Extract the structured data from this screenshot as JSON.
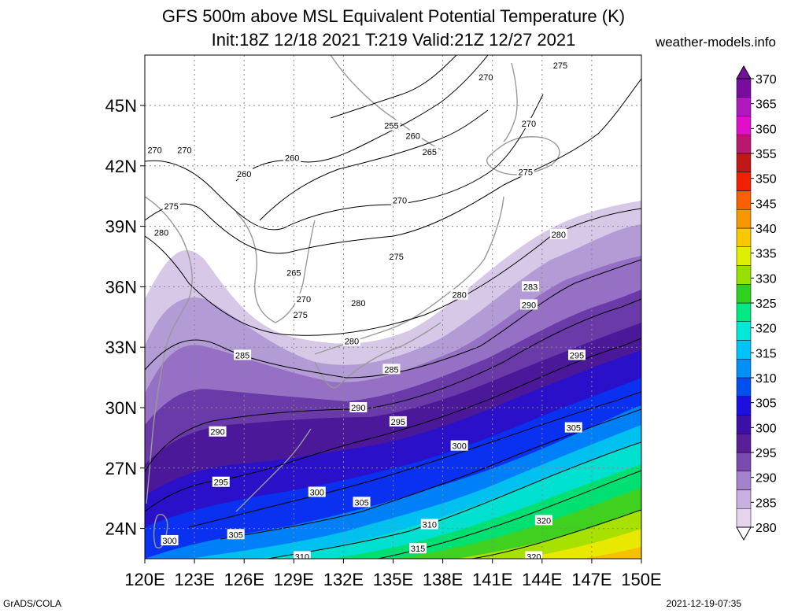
{
  "title_line1": "GFS 500m above MSL Equivalent Potential Temperature (K)",
  "title_line2": "Init:18Z 12/18 2021 T:219 Valid:21Z 12/27 2021",
  "credit": "weather-models.info",
  "footer_left": "GrADS/COLA",
  "footer_right": "2021-12-19-07:35",
  "map": {
    "lon_range": [
      120,
      150
    ],
    "lat_range": [
      22.5,
      47.5
    ],
    "lon_ticks": [
      "120E",
      "123E",
      "126E",
      "129E",
      "132E",
      "135E",
      "138E",
      "141E",
      "144E",
      "147E",
      "150E"
    ],
    "lat_ticks": [
      "24N",
      "27N",
      "30N",
      "33N",
      "36N",
      "39N",
      "42N",
      "45N"
    ],
    "lat_values": [
      24,
      27,
      30,
      33,
      36,
      39,
      42,
      45
    ],
    "grid": true
  },
  "colorbar": {
    "levels": [
      "280",
      "285",
      "290",
      "295",
      "300",
      "305",
      "310",
      "315",
      "320",
      "325",
      "330",
      "335",
      "340",
      "345",
      "350",
      "355",
      "360",
      "365",
      "370"
    ],
    "colors": [
      "#e6d4ee",
      "#c8b0e0",
      "#a482cc",
      "#7a4aaf",
      "#5a1e98",
      "#3c10a8",
      "#1c10e0",
      "#0050f0",
      "#0090f8",
      "#00c4f8",
      "#00e8d8",
      "#00e884",
      "#30d020",
      "#98e000",
      "#e0ee00",
      "#f8c800",
      "#f89800",
      "#f86000",
      "#f02000",
      "#c01818",
      "#b8186e",
      "#e010c8",
      "#b018c0",
      "#780c9c"
    ]
  },
  "contour_labels": [
    {
      "text": "270",
      "lon": 120.6,
      "lat": 42.8
    },
    {
      "text": "270",
      "lon": 122.4,
      "lat": 42.8
    },
    {
      "text": "275",
      "lon": 121.6,
      "lat": 40.0
    },
    {
      "text": "280",
      "lon": 121.0,
      "lat": 38.7
    },
    {
      "text": "260",
      "lon": 128.9,
      "lat": 42.4
    },
    {
      "text": "260",
      "lon": 126.0,
      "lat": 41.6
    },
    {
      "text": "255",
      "lon": 134.9,
      "lat": 44.0
    },
    {
      "text": "260",
      "lon": 136.2,
      "lat": 43.5
    },
    {
      "text": "265",
      "lon": 137.2,
      "lat": 42.7
    },
    {
      "text": "270",
      "lon": 140.6,
      "lat": 46.4
    },
    {
      "text": "275",
      "lon": 145.1,
      "lat": 47.0
    },
    {
      "text": "270",
      "lon": 143.2,
      "lat": 44.1
    },
    {
      "text": "275",
      "lon": 143.0,
      "lat": 41.7
    },
    {
      "text": "270",
      "lon": 135.4,
      "lat": 40.3
    },
    {
      "text": "275",
      "lon": 135.2,
      "lat": 37.5
    },
    {
      "text": "280",
      "lon": 145.0,
      "lat": 38.6
    },
    {
      "text": "265",
      "lon": 129.0,
      "lat": 36.7
    },
    {
      "text": "270",
      "lon": 129.6,
      "lat": 35.4
    },
    {
      "text": "275",
      "lon": 129.4,
      "lat": 34.6
    },
    {
      "text": "280",
      "lon": 132.9,
      "lat": 35.2
    },
    {
      "text": "280",
      "lon": 139.0,
      "lat": 35.6
    },
    {
      "text": "280",
      "lon": 132.5,
      "lat": 33.3
    },
    {
      "text": "283",
      "lon": 143.3,
      "lat": 36.0
    },
    {
      "text": "290",
      "lon": 143.2,
      "lat": 35.1
    },
    {
      "text": "285",
      "lon": 125.9,
      "lat": 32.6
    },
    {
      "text": "285",
      "lon": 134.9,
      "lat": 31.9
    },
    {
      "text": "295",
      "lon": 146.1,
      "lat": 32.6
    },
    {
      "text": "290",
      "lon": 132.9,
      "lat": 30.0
    },
    {
      "text": "295",
      "lon": 135.3,
      "lat": 29.3
    },
    {
      "text": "290",
      "lon": 124.4,
      "lat": 28.8
    },
    {
      "text": "305",
      "lon": 145.9,
      "lat": 29.0
    },
    {
      "text": "300",
      "lon": 139.0,
      "lat": 28.1
    },
    {
      "text": "295",
      "lon": 124.6,
      "lat": 26.3
    },
    {
      "text": "300",
      "lon": 130.4,
      "lat": 25.8
    },
    {
      "text": "305",
      "lon": 133.1,
      "lat": 25.3
    },
    {
      "text": "310",
      "lon": 137.2,
      "lat": 24.2
    },
    {
      "text": "320",
      "lon": 144.1,
      "lat": 24.4
    },
    {
      "text": "300",
      "lon": 121.5,
      "lat": 23.4
    },
    {
      "text": "305",
      "lon": 125.5,
      "lat": 23.7
    },
    {
      "text": "315",
      "lon": 136.5,
      "lat": 23.0
    },
    {
      "text": "310",
      "lon": 129.5,
      "lat": 22.6
    },
    {
      "text": "320",
      "lon": 143.5,
      "lat": 22.6
    }
  ]
}
